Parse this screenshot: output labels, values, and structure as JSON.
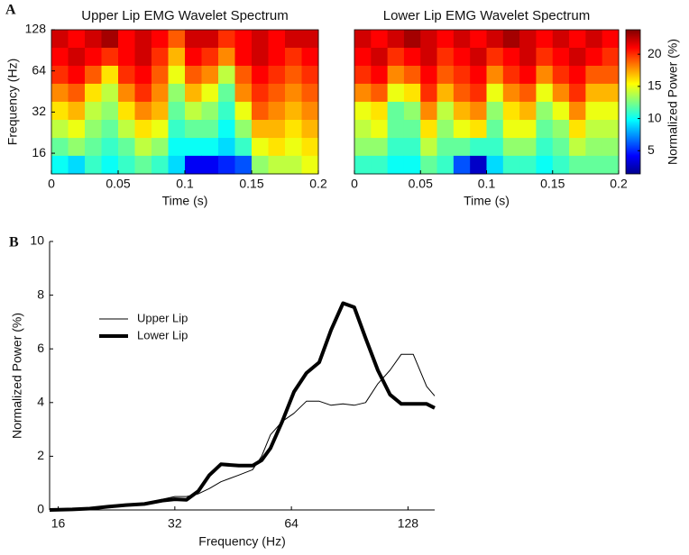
{
  "panel_labels": [
    "A",
    "B"
  ],
  "chart_data": [
    {
      "type": "heatmap",
      "title": "Upper Lip EMG Wavelet Spectrum",
      "x_label": "Time (s)",
      "y_label": "Frequency (Hz)",
      "xlim": [
        0,
        0.2
      ],
      "xticks": [
        0,
        0.05,
        0.1,
        0.15,
        0.2
      ],
      "ylim": [
        11.3,
        128
      ],
      "yticks": [
        16,
        32,
        64,
        128
      ],
      "y_scale": "log",
      "x": [
        0.00625,
        0.01875,
        0.03125,
        0.04375,
        0.05625,
        0.06875,
        0.08125,
        0.09375,
        0.10625,
        0.11875,
        0.13125,
        0.14375,
        0.15625,
        0.16875,
        0.18125,
        0.19375
      ],
      "y": [
        110,
        81.2,
        60,
        44.3,
        32.7,
        24.1,
        17.8,
        13.2
      ],
      "z": [
        [
          22,
          21,
          22,
          23,
          21,
          22,
          21,
          19,
          22,
          22,
          20,
          21,
          22,
          21,
          22,
          22
        ],
        [
          21,
          22,
          21,
          20,
          21,
          22,
          20,
          17,
          21,
          20,
          18,
          21,
          22,
          21,
          20,
          21
        ],
        [
          20,
          21,
          19,
          16,
          20,
          21,
          19,
          15,
          19,
          18,
          14,
          19,
          21,
          20,
          19,
          20
        ],
        [
          18,
          19,
          16,
          14,
          18,
          20,
          18,
          13,
          17,
          15,
          12,
          18,
          20,
          19,
          18,
          19
        ],
        [
          16,
          17,
          14,
          13,
          16,
          18,
          17,
          12,
          14,
          13,
          11,
          15,
          19,
          18,
          17,
          18
        ],
        [
          14,
          15,
          13,
          12,
          14,
          16,
          15,
          11,
          12,
          12,
          10,
          13,
          17,
          17,
          16,
          17
        ],
        [
          12,
          13,
          12,
          11,
          12,
          14,
          13,
          10,
          10,
          10,
          9,
          11,
          15,
          16,
          15,
          16
        ],
        [
          10,
          9,
          11,
          10,
          11,
          12,
          11,
          9,
          4,
          4,
          5,
          6,
          13,
          14,
          14,
          15
        ]
      ]
    },
    {
      "type": "heatmap",
      "title": "Lower Lip EMG Wavelet Spectrum",
      "x_label": "Time (s)",
      "xlim": [
        0,
        0.2
      ],
      "xticks": [
        0,
        0.05,
        0.1,
        0.15,
        0.2
      ],
      "ylim": [
        11.3,
        128
      ],
      "y_scale": "log",
      "x": [
        0.00625,
        0.01875,
        0.03125,
        0.04375,
        0.05625,
        0.06875,
        0.08125,
        0.09375,
        0.10625,
        0.11875,
        0.13125,
        0.14375,
        0.15625,
        0.16875,
        0.18125,
        0.19375
      ],
      "y": [
        110,
        81.2,
        60,
        44.3,
        32.7,
        24.1,
        17.8,
        13.2
      ],
      "z": [
        [
          22,
          21,
          22,
          23,
          22,
          21,
          22,
          21,
          22,
          23,
          22,
          21,
          22,
          21,
          22,
          21
        ],
        [
          21,
          22,
          20,
          21,
          22,
          20,
          21,
          22,
          20,
          21,
          22,
          20,
          21,
          22,
          21,
          20
        ],
        [
          20,
          21,
          18,
          19,
          21,
          19,
          20,
          21,
          18,
          20,
          21,
          18,
          20,
          21,
          19,
          19
        ],
        [
          18,
          19,
          15,
          16,
          20,
          17,
          19,
          20,
          15,
          18,
          19,
          15,
          18,
          20,
          17,
          17
        ],
        [
          15,
          16,
          12,
          13,
          18,
          14,
          17,
          18,
          13,
          16,
          17,
          13,
          15,
          18,
          15,
          15
        ],
        [
          14,
          15,
          12,
          12,
          16,
          13,
          15,
          16,
          12,
          15,
          15,
          12,
          13,
          16,
          14,
          14
        ],
        [
          13,
          13,
          11,
          11,
          14,
          12,
          12,
          11,
          11,
          13,
          13,
          11,
          12,
          14,
          13,
          13
        ],
        [
          11,
          11,
          10,
          10,
          12,
          11,
          6,
          3,
          9,
          11,
          11,
          10,
          11,
          12,
          12,
          12
        ]
      ]
    },
    {
      "type": "colorbar",
      "label": "Normalized Power (%)",
      "clim": [
        1.4,
        23.8
      ],
      "ticks": [
        5,
        10,
        15,
        20
      ],
      "colormap": "jet"
    },
    {
      "type": "line",
      "x_label": "Frequency (Hz)",
      "y_label": "Normalized Power (%)",
      "xlim": [
        15.2,
        150
      ],
      "xticks": [
        16,
        32,
        64,
        128
      ],
      "x_scale": "log",
      "ylim": [
        0,
        10
      ],
      "yticks": [
        0,
        2,
        4,
        6,
        8,
        10
      ],
      "legend": "upper left",
      "x": [
        15.2,
        17.4,
        19.3,
        21.5,
        23.9,
        26.7,
        29.7,
        32,
        34.3,
        36.8,
        39.3,
        42.1,
        46.8,
        50.8,
        53.6,
        56.5,
        60.6,
        65,
        70,
        75.5,
        81,
        87,
        93,
        99.5,
        107,
        115,
        123,
        132,
        143,
        150
      ],
      "series": [
        {
          "name": "Upper Lip",
          "color": "#000000",
          "width": 1,
          "values": [
            0.05,
            0.03,
            0.05,
            0.12,
            0.18,
            0.22,
            0.4,
            0.5,
            0.5,
            0.6,
            0.8,
            1.05,
            1.3,
            1.5,
            2.0,
            2.8,
            3.3,
            3.6,
            4.05,
            4.05,
            3.9,
            3.95,
            3.9,
            4.0,
            4.7,
            5.2,
            5.8,
            5.8,
            4.6,
            4.25
          ]
        },
        {
          "name": "Lower Lip",
          "color": "#000000",
          "width": 4,
          "values": [
            0,
            0.02,
            0.05,
            0.12,
            0.18,
            0.22,
            0.35,
            0.4,
            0.38,
            0.7,
            1.3,
            1.7,
            1.65,
            1.65,
            1.85,
            2.3,
            3.3,
            4.4,
            5.1,
            5.5,
            6.7,
            7.7,
            7.55,
            6.4,
            5.2,
            4.3,
            3.95,
            3.95,
            3.95,
            3.8
          ]
        }
      ]
    }
  ]
}
